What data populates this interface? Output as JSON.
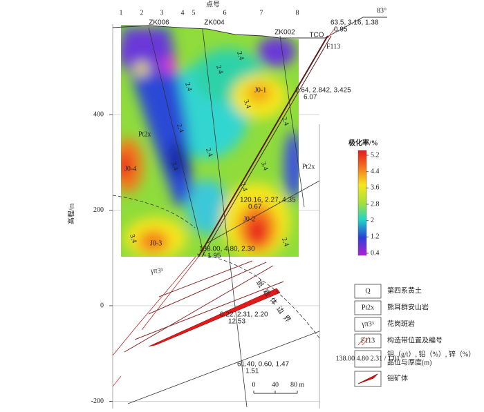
{
  "axis": {
    "title": "点号",
    "points": [
      "1",
      "2",
      "3",
      "4",
      "5",
      "6",
      "7",
      "8"
    ],
    "y_label": "高程/m",
    "yticks": [
      400,
      200,
      0,
      -200
    ]
  },
  "boreholes": [
    "ZK006",
    "ZK004",
    "ZK002",
    "TCO"
  ],
  "fault": "F113",
  "surface_note": {
    "values": "63.5, 3.16, 1.38",
    "thickness": "0.95",
    "dip": "83°"
  },
  "orebodies": [
    "J0-1",
    "J0-2",
    "J0-3",
    "J0-4"
  ],
  "units": [
    "Pt2x",
    "Pt2x",
    "γπ3³"
  ],
  "contours": [
    "2.4",
    "2.4",
    "2.4",
    "2.4",
    "3.4",
    "3.4",
    "2.4",
    "3.4",
    "2.4",
    "3.4",
    "2.4",
    "2.4"
  ],
  "samples": [
    {
      "values": "2.64, 2.842, 3.425",
      "thickness": "6.07"
    },
    {
      "values": "120.16, 2.27, 4.35",
      "thickness": "0.67"
    },
    {
      "values": "138.00, 4.80, 2.30",
      "thickness": "1.95"
    },
    {
      "values": "0.22, 2.31, 2.20",
      "thickness": "12.53"
    },
    {
      "values": "61.40, 0.60, 1.47",
      "thickness": "1.51"
    }
  ],
  "boundary": "斑岩体边界",
  "scale": [
    "0",
    "40",
    "80 m"
  ],
  "colorbar": {
    "title": "极化率/%",
    "ticks": [
      5.2,
      4.4,
      3.6,
      2.8,
      2,
      1.2,
      0.4
    ]
  },
  "legend": [
    {
      "symbol": "Q",
      "label": "第四系黄土"
    },
    {
      "symbol": "Pt2x",
      "label": "熊耳群安山岩"
    },
    {
      "symbol": "γπ3³",
      "label": "花岗斑岩"
    },
    {
      "symbol": "F113",
      "label": "构造带位置及编号"
    },
    {
      "symbol": "138.00 4.80 2.31 / 1.01",
      "label": "钼（g/t）, 铅（%）, 锌（%）",
      "label2": "品位与厚度(m)"
    },
    {
      "symbol": "",
      "label": "钼矿体"
    }
  ]
}
